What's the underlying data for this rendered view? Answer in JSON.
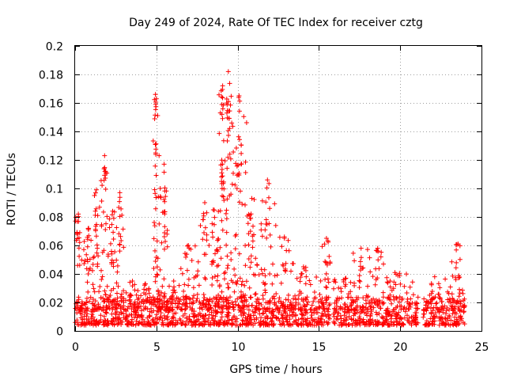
{
  "chart_data": {
    "type": "scatter",
    "title": "Day 249 of 2024, Rate Of TEC Index for receiver cztg",
    "xlabel": "GPS time / hours",
    "ylabel": "ROTI / TECUs",
    "xlim": [
      0,
      25
    ],
    "ylim": [
      0,
      0.2
    ],
    "xticks": [
      0,
      5,
      10,
      15,
      20,
      25
    ],
    "xtick_labels": [
      "0",
      "5",
      "10",
      "15",
      "20",
      "25"
    ],
    "yticks": [
      0,
      0.02,
      0.04,
      0.06,
      0.08,
      0.1,
      0.12,
      0.14,
      0.16,
      0.18,
      0.2
    ],
    "ytick_labels": [
      "0",
      "0.02",
      "0.04",
      "0.06",
      "0.08",
      "0.1",
      "0.12",
      "0.14",
      "0.16",
      "0.18",
      "0.2"
    ],
    "grid": true,
    "marker": "plus",
    "color": "#ff0000",
    "gaps_hours": [
      [
        15.7,
        15.9
      ],
      [
        21.1,
        21.4
      ]
    ],
    "envelope": [
      {
        "start": 0.0,
        "end": 0.5,
        "max": 0.082
      },
      {
        "start": 0.5,
        "end": 1.0,
        "max": 0.072
      },
      {
        "start": 1.0,
        "end": 1.5,
        "max": 0.099
      },
      {
        "start": 1.5,
        "end": 2.0,
        "max": 0.123
      },
      {
        "start": 2.0,
        "end": 2.5,
        "max": 0.084
      },
      {
        "start": 2.5,
        "end": 3.0,
        "max": 0.097
      },
      {
        "start": 3.0,
        "end": 4.0,
        "max": 0.035
      },
      {
        "start": 4.0,
        "end": 4.8,
        "max": 0.033
      },
      {
        "start": 4.8,
        "end": 5.2,
        "max": 0.166
      },
      {
        "start": 5.2,
        "end": 5.7,
        "max": 0.117
      },
      {
        "start": 5.7,
        "end": 6.5,
        "max": 0.035
      },
      {
        "start": 6.5,
        "end": 7.5,
        "max": 0.06
      },
      {
        "start": 7.5,
        "end": 8.3,
        "max": 0.09
      },
      {
        "start": 8.3,
        "end": 8.8,
        "max": 0.085
      },
      {
        "start": 8.8,
        "end": 9.2,
        "max": 0.172
      },
      {
        "start": 9.2,
        "end": 9.8,
        "max": 0.182
      },
      {
        "start": 9.8,
        "end": 10.6,
        "max": 0.165
      },
      {
        "start": 10.6,
        "end": 11.5,
        "max": 0.093
      },
      {
        "start": 11.5,
        "end": 12.5,
        "max": 0.106
      },
      {
        "start": 12.5,
        "end": 13.5,
        "max": 0.066
      },
      {
        "start": 13.5,
        "end": 15.0,
        "max": 0.045
      },
      {
        "start": 15.0,
        "end": 15.7,
        "max": 0.065
      },
      {
        "start": 15.9,
        "end": 17.0,
        "max": 0.037
      },
      {
        "start": 17.0,
        "end": 18.0,
        "max": 0.058
      },
      {
        "start": 18.0,
        "end": 19.0,
        "max": 0.058
      },
      {
        "start": 19.0,
        "end": 21.1,
        "max": 0.041
      },
      {
        "start": 21.4,
        "end": 23.0,
        "max": 0.038
      },
      {
        "start": 23.0,
        "end": 24.0,
        "max": 0.061
      }
    ]
  }
}
